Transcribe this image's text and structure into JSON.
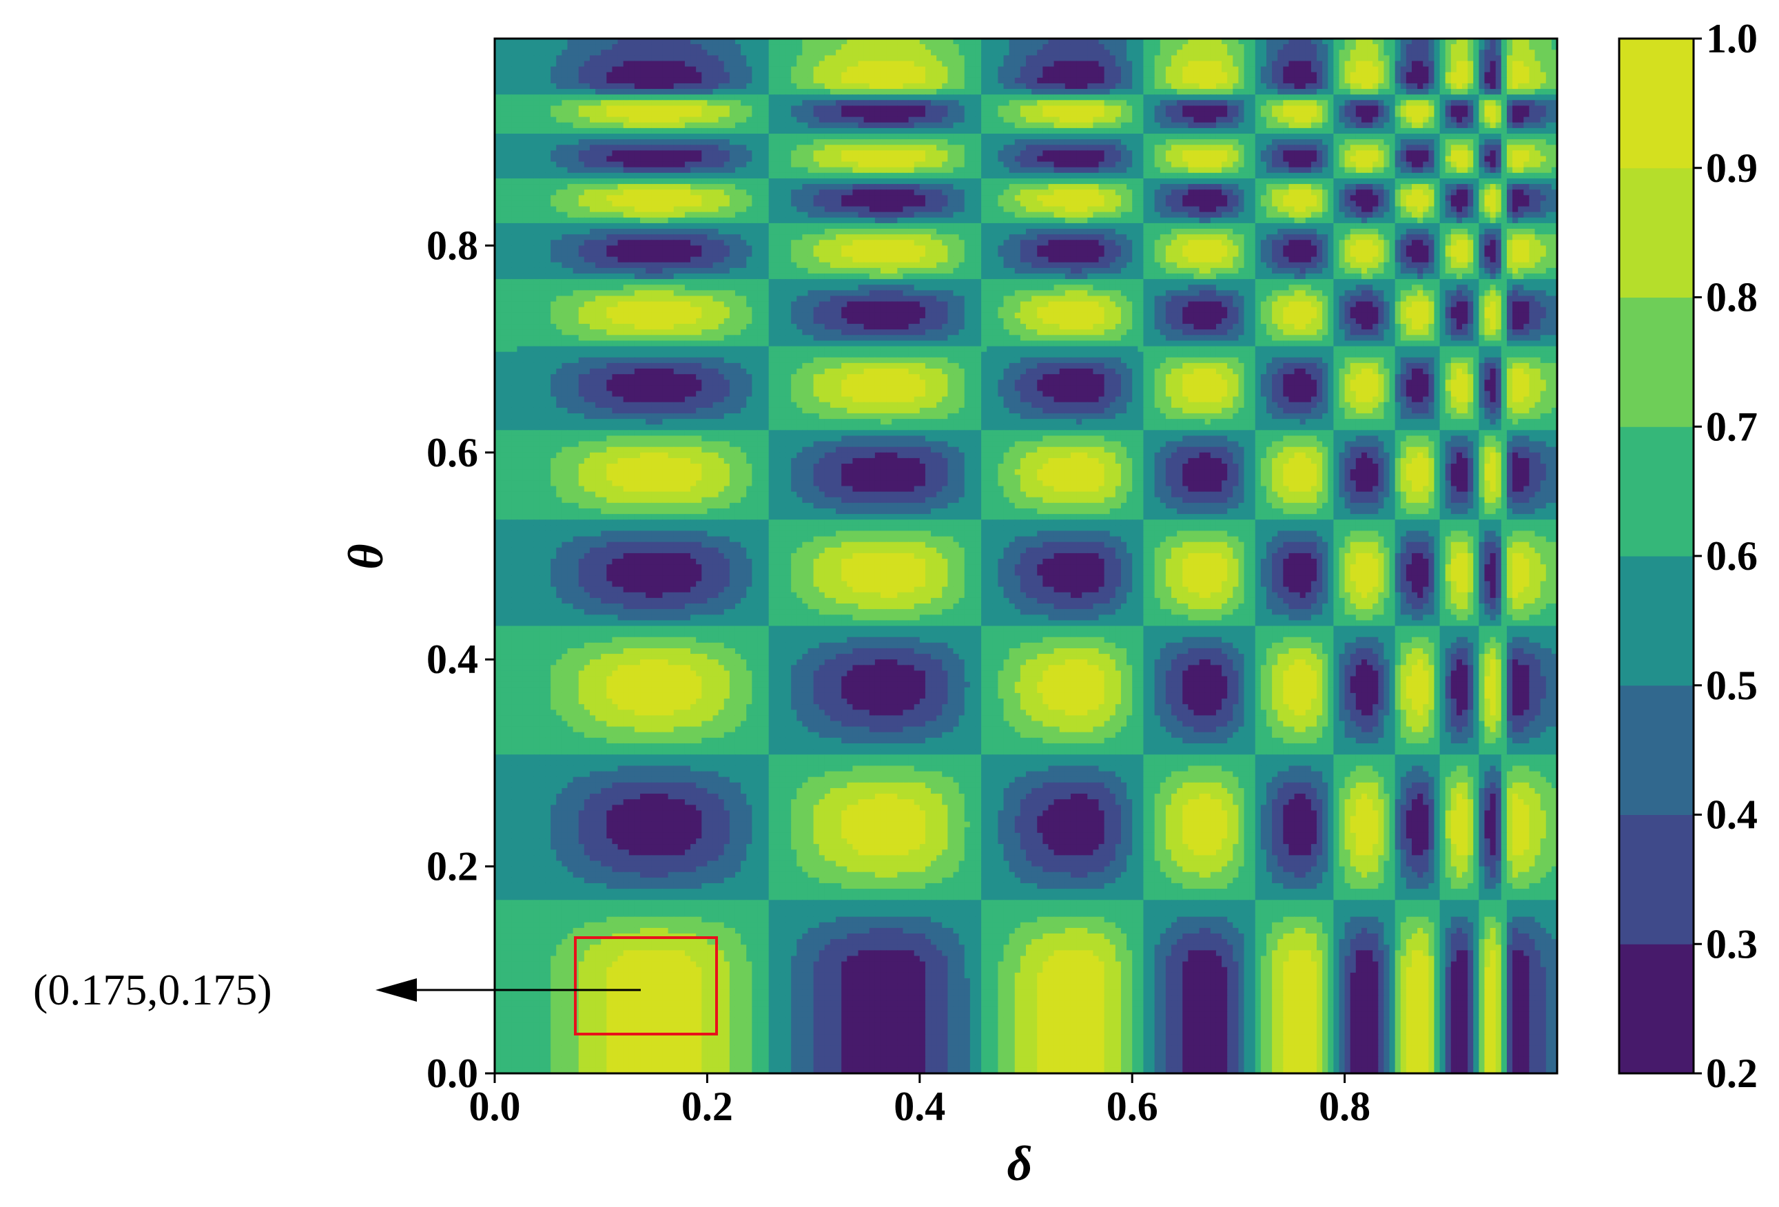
{
  "chart_data": {
    "type": "heatmap",
    "title": "",
    "xlabel": "δ",
    "ylabel": "θ",
    "xlim": [
      0,
      1
    ],
    "ylim": [
      0,
      1
    ],
    "x_ticks": [
      "0.0",
      "0.2",
      "0.4",
      "0.6",
      "0.8"
    ],
    "y_ticks": [
      "0.0",
      "0.2",
      "0.4",
      "0.6",
      "0.8"
    ],
    "colorbar": {
      "levels": [
        0.2,
        0.3,
        0.4,
        0.5,
        0.6,
        0.7,
        0.8,
        0.9,
        1.0
      ],
      "tick_labels": [
        "0.2",
        "0.3",
        "0.4",
        "0.5",
        "0.6",
        "0.7",
        "0.8",
        "0.9",
        "1.0"
      ],
      "colors": [
        "#471a6b",
        "#3f4a8a",
        "#31688e",
        "#22908c",
        "#35b779",
        "#6ece58",
        "#b5de2b",
        "#d4e01f"
      ]
    },
    "field": {
      "description": "Filled contour map; value oscillates along both axes with increasing frequency in δ",
      "theta_minima": [
        0.0,
        0.09,
        0.375,
        0.58,
        0.735,
        0.845,
        0.93
      ],
      "theta_maxima": [
        0.24,
        0.485,
        0.665,
        0.795,
        0.885,
        0.96
      ],
      "delta_minima": [
        0.15,
        0.55,
        0.76,
        0.87,
        0.94
      ],
      "delta_maxima": [
        0.37,
        0.67,
        0.82,
        0.91,
        0.96
      ]
    },
    "grid": false,
    "legend": "none",
    "annotation": {
      "text": "(0.175,0.175)",
      "box_color": "#e8111b",
      "arrow_color": "#000000"
    }
  }
}
